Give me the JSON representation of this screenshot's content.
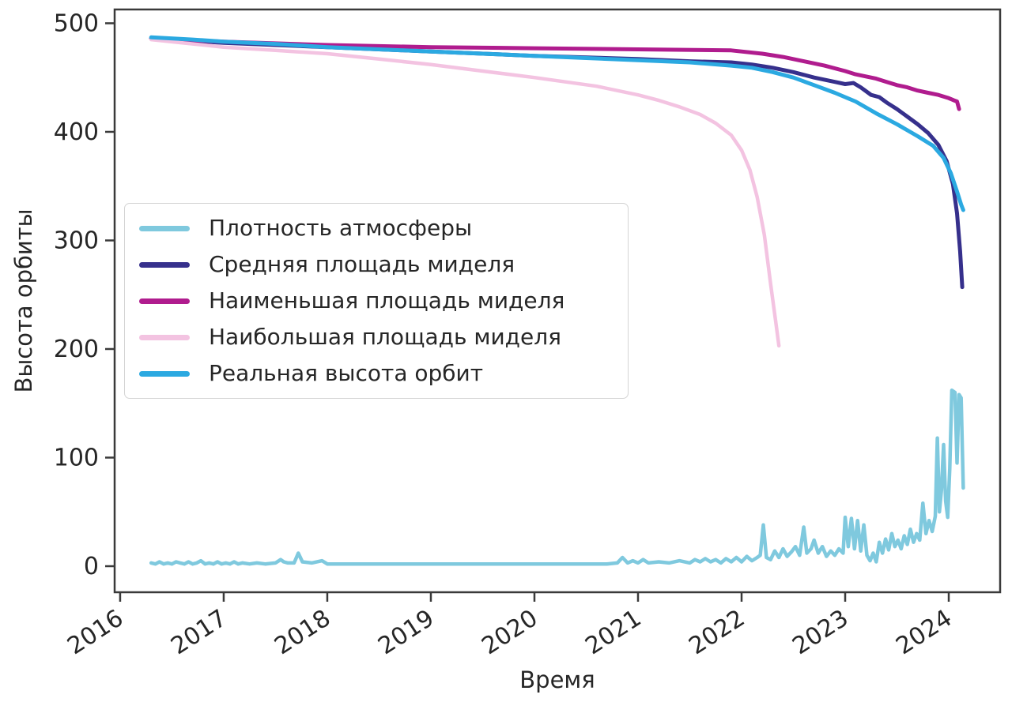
{
  "figure": {
    "xlabel": "Время",
    "ylabel": "Высота орбиты",
    "text_color": "#262626",
    "axis_color": "#3a3a3a",
    "background": "#ffffff"
  },
  "chart_data": {
    "type": "line",
    "title": "",
    "xlabel": "Время",
    "ylabel": "Высота орбиты",
    "grid": false,
    "legend_position": "center-left",
    "xlim": [
      2015.947,
      2024.496
    ],
    "ylim": [
      -24,
      512.7
    ],
    "x_ticks": [
      2016,
      2017,
      2018,
      2019,
      2020,
      2021,
      2022,
      2023,
      2024
    ],
    "y_ticks": [
      0,
      100,
      200,
      300,
      400,
      500
    ],
    "series": [
      {
        "name": "Плотность атмосферы",
        "color": "#7FC9DE",
        "line_width": 4.5,
        "points": [
          [
            2016.3,
            3
          ],
          [
            2016.34,
            2
          ],
          [
            2016.38,
            4
          ],
          [
            2016.42,
            2
          ],
          [
            2016.46,
            3
          ],
          [
            2016.5,
            2
          ],
          [
            2016.54,
            4
          ],
          [
            2016.58,
            3
          ],
          [
            2016.62,
            2
          ],
          [
            2016.66,
            4
          ],
          [
            2016.7,
            2
          ],
          [
            2016.74,
            3
          ],
          [
            2016.78,
            5
          ],
          [
            2016.82,
            2
          ],
          [
            2016.86,
            3
          ],
          [
            2016.9,
            2
          ],
          [
            2016.94,
            4
          ],
          [
            2016.98,
            2
          ],
          [
            2017.02,
            3
          ],
          [
            2017.06,
            2
          ],
          [
            2017.1,
            4
          ],
          [
            2017.14,
            2
          ],
          [
            2017.18,
            3
          ],
          [
            2017.25,
            2
          ],
          [
            2017.32,
            3
          ],
          [
            2017.4,
            2
          ],
          [
            2017.5,
            3
          ],
          [
            2017.55,
            6
          ],
          [
            2017.58,
            4
          ],
          [
            2017.62,
            3
          ],
          [
            2017.68,
            3
          ],
          [
            2017.72,
            12
          ],
          [
            2017.76,
            4
          ],
          [
            2017.85,
            3
          ],
          [
            2017.95,
            5
          ],
          [
            2018.0,
            2
          ],
          [
            2018.2,
            2
          ],
          [
            2018.6,
            2
          ],
          [
            2019.0,
            2
          ],
          [
            2019.5,
            2
          ],
          [
            2020.0,
            2
          ],
          [
            2020.4,
            2
          ],
          [
            2020.7,
            2
          ],
          [
            2020.8,
            3
          ],
          [
            2020.85,
            8
          ],
          [
            2020.9,
            3
          ],
          [
            2020.95,
            5
          ],
          [
            2021.0,
            3
          ],
          [
            2021.05,
            6
          ],
          [
            2021.1,
            3
          ],
          [
            2021.2,
            4
          ],
          [
            2021.3,
            3
          ],
          [
            2021.4,
            5
          ],
          [
            2021.5,
            3
          ],
          [
            2021.55,
            6
          ],
          [
            2021.6,
            4
          ],
          [
            2021.65,
            7
          ],
          [
            2021.7,
            4
          ],
          [
            2021.75,
            6
          ],
          [
            2021.8,
            3
          ],
          [
            2021.85,
            7
          ],
          [
            2021.9,
            4
          ],
          [
            2021.95,
            8
          ],
          [
            2022.0,
            4
          ],
          [
            2022.05,
            9
          ],
          [
            2022.1,
            5
          ],
          [
            2022.15,
            8
          ],
          [
            2022.18,
            10
          ],
          [
            2022.21,
            38
          ],
          [
            2022.24,
            8
          ],
          [
            2022.28,
            6
          ],
          [
            2022.32,
            14
          ],
          [
            2022.36,
            8
          ],
          [
            2022.4,
            16
          ],
          [
            2022.44,
            9
          ],
          [
            2022.48,
            13
          ],
          [
            2022.52,
            18
          ],
          [
            2022.56,
            10
          ],
          [
            2022.6,
            36
          ],
          [
            2022.63,
            12
          ],
          [
            2022.67,
            16
          ],
          [
            2022.7,
            24
          ],
          [
            2022.74,
            12
          ],
          [
            2022.78,
            18
          ],
          [
            2022.82,
            9
          ],
          [
            2022.86,
            14
          ],
          [
            2022.9,
            10
          ],
          [
            2022.94,
            16
          ],
          [
            2022.98,
            12
          ],
          [
            2023.0,
            45
          ],
          [
            2023.03,
            18
          ],
          [
            2023.06,
            44
          ],
          [
            2023.09,
            16
          ],
          [
            2023.12,
            42
          ],
          [
            2023.15,
            14
          ],
          [
            2023.18,
            38
          ],
          [
            2023.21,
            10
          ],
          [
            2023.24,
            5
          ],
          [
            2023.27,
            12
          ],
          [
            2023.3,
            4
          ],
          [
            2023.33,
            22
          ],
          [
            2023.36,
            12
          ],
          [
            2023.39,
            25
          ],
          [
            2023.42,
            15
          ],
          [
            2023.45,
            30
          ],
          [
            2023.48,
            18
          ],
          [
            2023.51,
            24
          ],
          [
            2023.54,
            16
          ],
          [
            2023.57,
            28
          ],
          [
            2023.6,
            20
          ],
          [
            2023.63,
            34
          ],
          [
            2023.66,
            22
          ],
          [
            2023.69,
            30
          ],
          [
            2023.72,
            24
          ],
          [
            2023.75,
            58
          ],
          [
            2023.78,
            30
          ],
          [
            2023.81,
            42
          ],
          [
            2023.84,
            32
          ],
          [
            2023.87,
            46
          ],
          [
            2023.89,
            118
          ],
          [
            2023.91,
            50
          ],
          [
            2023.93,
            70
          ],
          [
            2023.95,
            112
          ],
          [
            2023.97,
            60
          ],
          [
            2023.99,
            45
          ],
          [
            2024.01,
            90
          ],
          [
            2024.03,
            162
          ],
          [
            2024.06,
            160
          ],
          [
            2024.08,
            95
          ],
          [
            2024.1,
            158
          ],
          [
            2024.12,
            155
          ],
          [
            2024.14,
            72
          ]
        ]
      },
      {
        "name": "Средняя площадь миделя",
        "color": "#36308C",
        "line_width": 5,
        "points": [
          [
            2016.3,
            486
          ],
          [
            2017.0,
            482
          ],
          [
            2018.0,
            478
          ],
          [
            2019.0,
            474
          ],
          [
            2020.0,
            470
          ],
          [
            2021.0,
            467
          ],
          [
            2021.5,
            465
          ],
          [
            2021.9,
            464
          ],
          [
            2022.1,
            462
          ],
          [
            2022.3,
            459
          ],
          [
            2022.5,
            455
          ],
          [
            2022.7,
            450
          ],
          [
            2022.9,
            446
          ],
          [
            2023.0,
            444
          ],
          [
            2023.08,
            445
          ],
          [
            2023.15,
            441
          ],
          [
            2023.25,
            434
          ],
          [
            2023.33,
            432
          ],
          [
            2023.4,
            427
          ],
          [
            2023.5,
            421
          ],
          [
            2023.6,
            414
          ],
          [
            2023.7,
            407
          ],
          [
            2023.8,
            399
          ],
          [
            2023.9,
            388
          ],
          [
            2023.98,
            373
          ],
          [
            2024.04,
            352
          ],
          [
            2024.08,
            325
          ],
          [
            2024.11,
            290
          ],
          [
            2024.13,
            257
          ]
        ]
      },
      {
        "name": "Наименьшая площадь миделя",
        "color": "#B01C8E",
        "line_width": 5,
        "points": [
          [
            2016.3,
            486
          ],
          [
            2017.0,
            483
          ],
          [
            2018.0,
            480
          ],
          [
            2019.0,
            478
          ],
          [
            2020.0,
            477
          ],
          [
            2021.0,
            476
          ],
          [
            2021.9,
            475
          ],
          [
            2022.2,
            472
          ],
          [
            2022.4,
            469
          ],
          [
            2022.6,
            465
          ],
          [
            2022.8,
            461
          ],
          [
            2023.0,
            456
          ],
          [
            2023.1,
            453
          ],
          [
            2023.2,
            451
          ],
          [
            2023.3,
            449
          ],
          [
            2023.4,
            446
          ],
          [
            2023.5,
            443
          ],
          [
            2023.6,
            441
          ],
          [
            2023.7,
            438
          ],
          [
            2023.8,
            436
          ],
          [
            2023.9,
            434
          ],
          [
            2024.0,
            431
          ],
          [
            2024.05,
            429
          ],
          [
            2024.08,
            428
          ],
          [
            2024.1,
            421
          ]
        ]
      },
      {
        "name": "Наибольшая площадь миделя",
        "color": "#F3C3E1",
        "line_width": 4.5,
        "points": [
          [
            2016.3,
            485
          ],
          [
            2016.6,
            482
          ],
          [
            2017.0,
            478
          ],
          [
            2017.5,
            475
          ],
          [
            2018.0,
            472
          ],
          [
            2018.5,
            467
          ],
          [
            2019.0,
            462
          ],
          [
            2019.5,
            456
          ],
          [
            2020.0,
            450
          ],
          [
            2020.3,
            446
          ],
          [
            2020.6,
            442
          ],
          [
            2021.0,
            434
          ],
          [
            2021.2,
            429
          ],
          [
            2021.4,
            423
          ],
          [
            2021.6,
            416
          ],
          [
            2021.75,
            408
          ],
          [
            2021.9,
            397
          ],
          [
            2022.0,
            383
          ],
          [
            2022.08,
            365
          ],
          [
            2022.15,
            340
          ],
          [
            2022.22,
            305
          ],
          [
            2022.28,
            260
          ],
          [
            2022.33,
            225
          ],
          [
            2022.36,
            203
          ]
        ]
      },
      {
        "name": "Реальная высота орбит",
        "color": "#2BA9E1",
        "line_width": 5,
        "points": [
          [
            2016.3,
            487
          ],
          [
            2016.7,
            485
          ],
          [
            2017.0,
            483
          ],
          [
            2017.5,
            481
          ],
          [
            2018.0,
            478
          ],
          [
            2018.5,
            476
          ],
          [
            2019.0,
            474
          ],
          [
            2019.5,
            472
          ],
          [
            2020.0,
            470
          ],
          [
            2020.5,
            468
          ],
          [
            2021.0,
            466
          ],
          [
            2021.5,
            464
          ],
          [
            2021.9,
            461
          ],
          [
            2022.1,
            459
          ],
          [
            2022.3,
            455
          ],
          [
            2022.5,
            450
          ],
          [
            2022.7,
            443
          ],
          [
            2022.9,
            436
          ],
          [
            2023.1,
            428
          ],
          [
            2023.3,
            417
          ],
          [
            2023.5,
            407
          ],
          [
            2023.7,
            396
          ],
          [
            2023.85,
            387
          ],
          [
            2023.95,
            376
          ],
          [
            2024.02,
            362
          ],
          [
            2024.08,
            345
          ],
          [
            2024.12,
            333
          ],
          [
            2024.14,
            328
          ]
        ]
      }
    ]
  }
}
